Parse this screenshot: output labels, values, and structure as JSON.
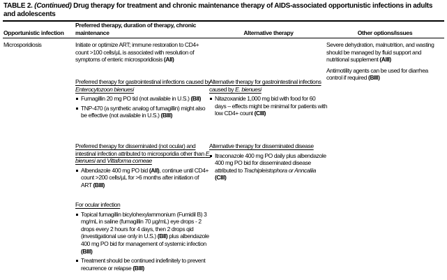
{
  "title": {
    "table_label": "TABLE 2.",
    "continued": "(Continued)",
    "text": "Drug therapy for treatment and chronic maintenance therapy of AIDS-associated opportunistic infections in adults and adolescents"
  },
  "header": {
    "col_infection": "Opportunistic infection",
    "col_preferred": "Preferred therapy, duration of therapy, chronic maintenance",
    "col_alternative": "Alternative therapy",
    "col_other": "Other options/issues"
  },
  "row": {
    "infection": "Microsporidiosis",
    "preferred": {
      "intro_text": "Initiate or optimize ART; immune restoration to CD4+ count >100 cells/µL is associated with resolution of symptoms of enteric microsporidiosis ",
      "intro_grade": "(AII)",
      "gi_heading_pre": "Preferred therapy for gastrointestinal infections caused by ",
      "gi_heading_species": "Enterocytozoon bienuesi",
      "gi_bullet1_text": "Fumagillin 20 mg PO tid (not available in U.S.) ",
      "gi_bullet1_grade": "(BII)",
      "gi_bullet2_text": "TNP-470 (a synthetic analog of fumagillin) might also be effective (not available in U.S.) ",
      "gi_bullet2_grade": "(BIII)",
      "diss_heading_pre": "Preferred therapy for disseminated (not ocular) and intestinal infection attributed to microsporidia other than ",
      "diss_heading_species1": "E. bienuesi",
      "diss_heading_mid": " and ",
      "diss_heading_species2": "Vittaforma corneae",
      "diss_bullet_t1": "Albendazole 400 mg PO bid ",
      "diss_bullet_g1": "(AII)",
      "diss_bullet_t2": ", continue until CD4+ count >200 cells/µL for >6 months after initiation of ART ",
      "diss_bullet_g2": "(BIII)",
      "ocular_heading": "For ocular infection",
      "ocular_bullet1_t1": "Topical fumagillin bicylohexylammonium (Fumidil B) 3 mg/mL in saline (fumagillin 70 µg/mL) eye drops - 2 drops every 2 hours for 4 days, then 2 drops qid (investigational use only in U.S.) ",
      "ocular_bullet1_g1": "(BII)",
      "ocular_bullet1_t2": " plus albendazole 400 mg PO bid for management of systemic infection ",
      "ocular_bullet1_g2": "(BIII)",
      "ocular_bullet2_text": "Treatment should be continued indefinitely to prevent recurrence or relapse ",
      "ocular_bullet2_grade": "(BIII)"
    },
    "alternative": {
      "gi_heading_pre": "Alternative therapy for gastrointestinal infections caused by ",
      "gi_heading_species": "E. bienuesi",
      "gi_bullet_text": "Nitazoxanide 1,000 mg bid with food for 60 days – effects might be minimal for patients with low CD4+ count ",
      "gi_bullet_grade": "(CIII)",
      "diss_heading": "Alternative therapy for disseminated disease",
      "diss_bullet_t1": "Itraconazole 400 mg PO daily plus albendazole 400 mg PO bid for disseminated disease attributed to ",
      "diss_bullet_species": "Trachipleistophora or Anncaliia",
      "diss_bullet_t2": " ",
      "diss_bullet_grade": "(CIII)"
    },
    "other": {
      "p1_text": "Severe dehydration, malnutrition, and wasting should be managed by fluid support and nutritional supplement ",
      "p1_grade": "(AIII)",
      "p2_text": "Antimotility agents can be used for diarrhea control if required ",
      "p2_grade": "(BIII)"
    }
  }
}
